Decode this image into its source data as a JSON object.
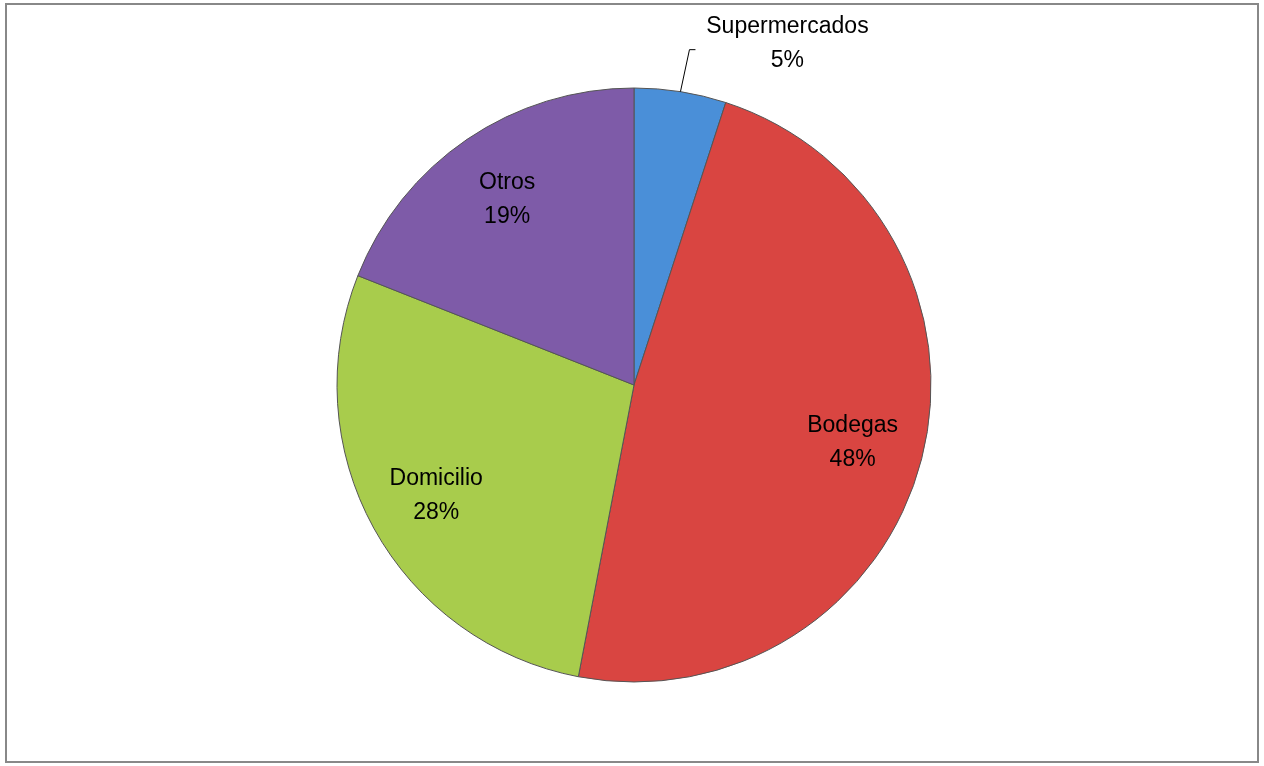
{
  "chart_data": {
    "type": "pie",
    "categories": [
      "Supermercados",
      "Bodegas",
      "Domicilio",
      "Otros"
    ],
    "values": [
      5,
      48,
      28,
      19
    ],
    "colors": [
      "#4a8fd8",
      "#d94541",
      "#a8cc4c",
      "#7e5ba8"
    ],
    "value_labels": [
      "5%",
      "48%",
      "28%",
      "19%"
    ]
  }
}
